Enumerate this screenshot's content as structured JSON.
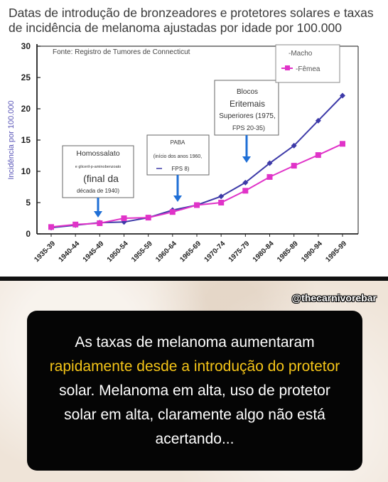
{
  "chart_data": {
    "type": "line",
    "title": "Datas de introdução de bronzeadores e protetores solares e taxas de incidência de melanoma ajustadas por idade por 100.000",
    "source": "Fonte: Registro de Tumores de Connecticut",
    "xlabel": "",
    "ylabel": "Incidência por 100.000",
    "ylim": [
      0,
      30
    ],
    "yticks": [
      "0",
      "5",
      "10",
      "15",
      "20",
      "25",
      "30"
    ],
    "categories": [
      "1935-39",
      "1940-44",
      "1945-49",
      "1950-54",
      "1955-59",
      "1960-64",
      "1965-69",
      "1970-74",
      "1975-79",
      "1980-84",
      "1985-89",
      "1990-94",
      "1995-99"
    ],
    "series": [
      {
        "name": "-Macho",
        "color": "#3d3aa8",
        "marker": "diamond",
        "values": [
          1.0,
          1.4,
          1.8,
          1.9,
          2.6,
          3.8,
          4.6,
          6.0,
          8.2,
          11.3,
          14.1,
          18.1,
          22.1
        ]
      },
      {
        "name": "-Fêmea",
        "color": "#e033c8",
        "marker": "square",
        "values": [
          1.1,
          1.5,
          1.7,
          2.5,
          2.6,
          3.5,
          4.6,
          5.0,
          6.9,
          9.1,
          10.9,
          12.6,
          14.4
        ]
      }
    ],
    "legend_position": "top-right",
    "grid": false,
    "annotations": [
      {
        "id": "homo",
        "lines": [
          "Homossalato",
          "e gliceril-p-aminobenzoato",
          "(final da",
          "década de 1940)"
        ]
      },
      {
        "id": "paba",
        "lines": [
          "PABA",
          "(início dos anos 1960,",
          "FPS 8)"
        ]
      },
      {
        "id": "bloc",
        "lines": [
          "Blocos",
          "Eritemais",
          "Superiores (1975,",
          "FPS 20-35)"
        ]
      }
    ]
  },
  "overlay": {
    "handle": "@thecarnivorebar",
    "caption": {
      "line1": "As taxas de melanoma aumentaram",
      "line2": "rapidamente desde a introdução do protetor",
      "line3": "solar. Melanoma em alta, uso de protetor",
      "line4": "solar em alta, claramente algo não está",
      "line5": "acertando..."
    },
    "highlight_color": "#f5c518"
  }
}
